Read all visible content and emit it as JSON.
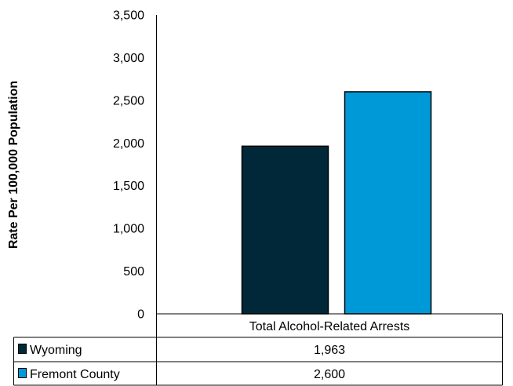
{
  "chart_data": {
    "type": "bar",
    "title": "",
    "xlabel": "",
    "ylabel": "Rate Per 100,000 Population",
    "ylim": [
      0,
      3500
    ],
    "yticks": [
      0,
      500,
      1000,
      1500,
      2000,
      2500,
      3000,
      3500
    ],
    "ytick_labels": [
      "0",
      "500",
      "1,000",
      "1,500",
      "2,000",
      "2,500",
      "3,000",
      "3,500"
    ],
    "categories": [
      "Total Alcohol-Related Arrests"
    ],
    "grid": false,
    "legend": "data-table-bottom",
    "series": [
      {
        "name": "Wyoming",
        "values": [
          1963
        ],
        "labels": [
          "1,963"
        ],
        "color": "#002838"
      },
      {
        "name": "Fremont County",
        "values": [
          2600
        ],
        "labels": [
          "2,600"
        ],
        "color": "#0099d8"
      }
    ]
  }
}
